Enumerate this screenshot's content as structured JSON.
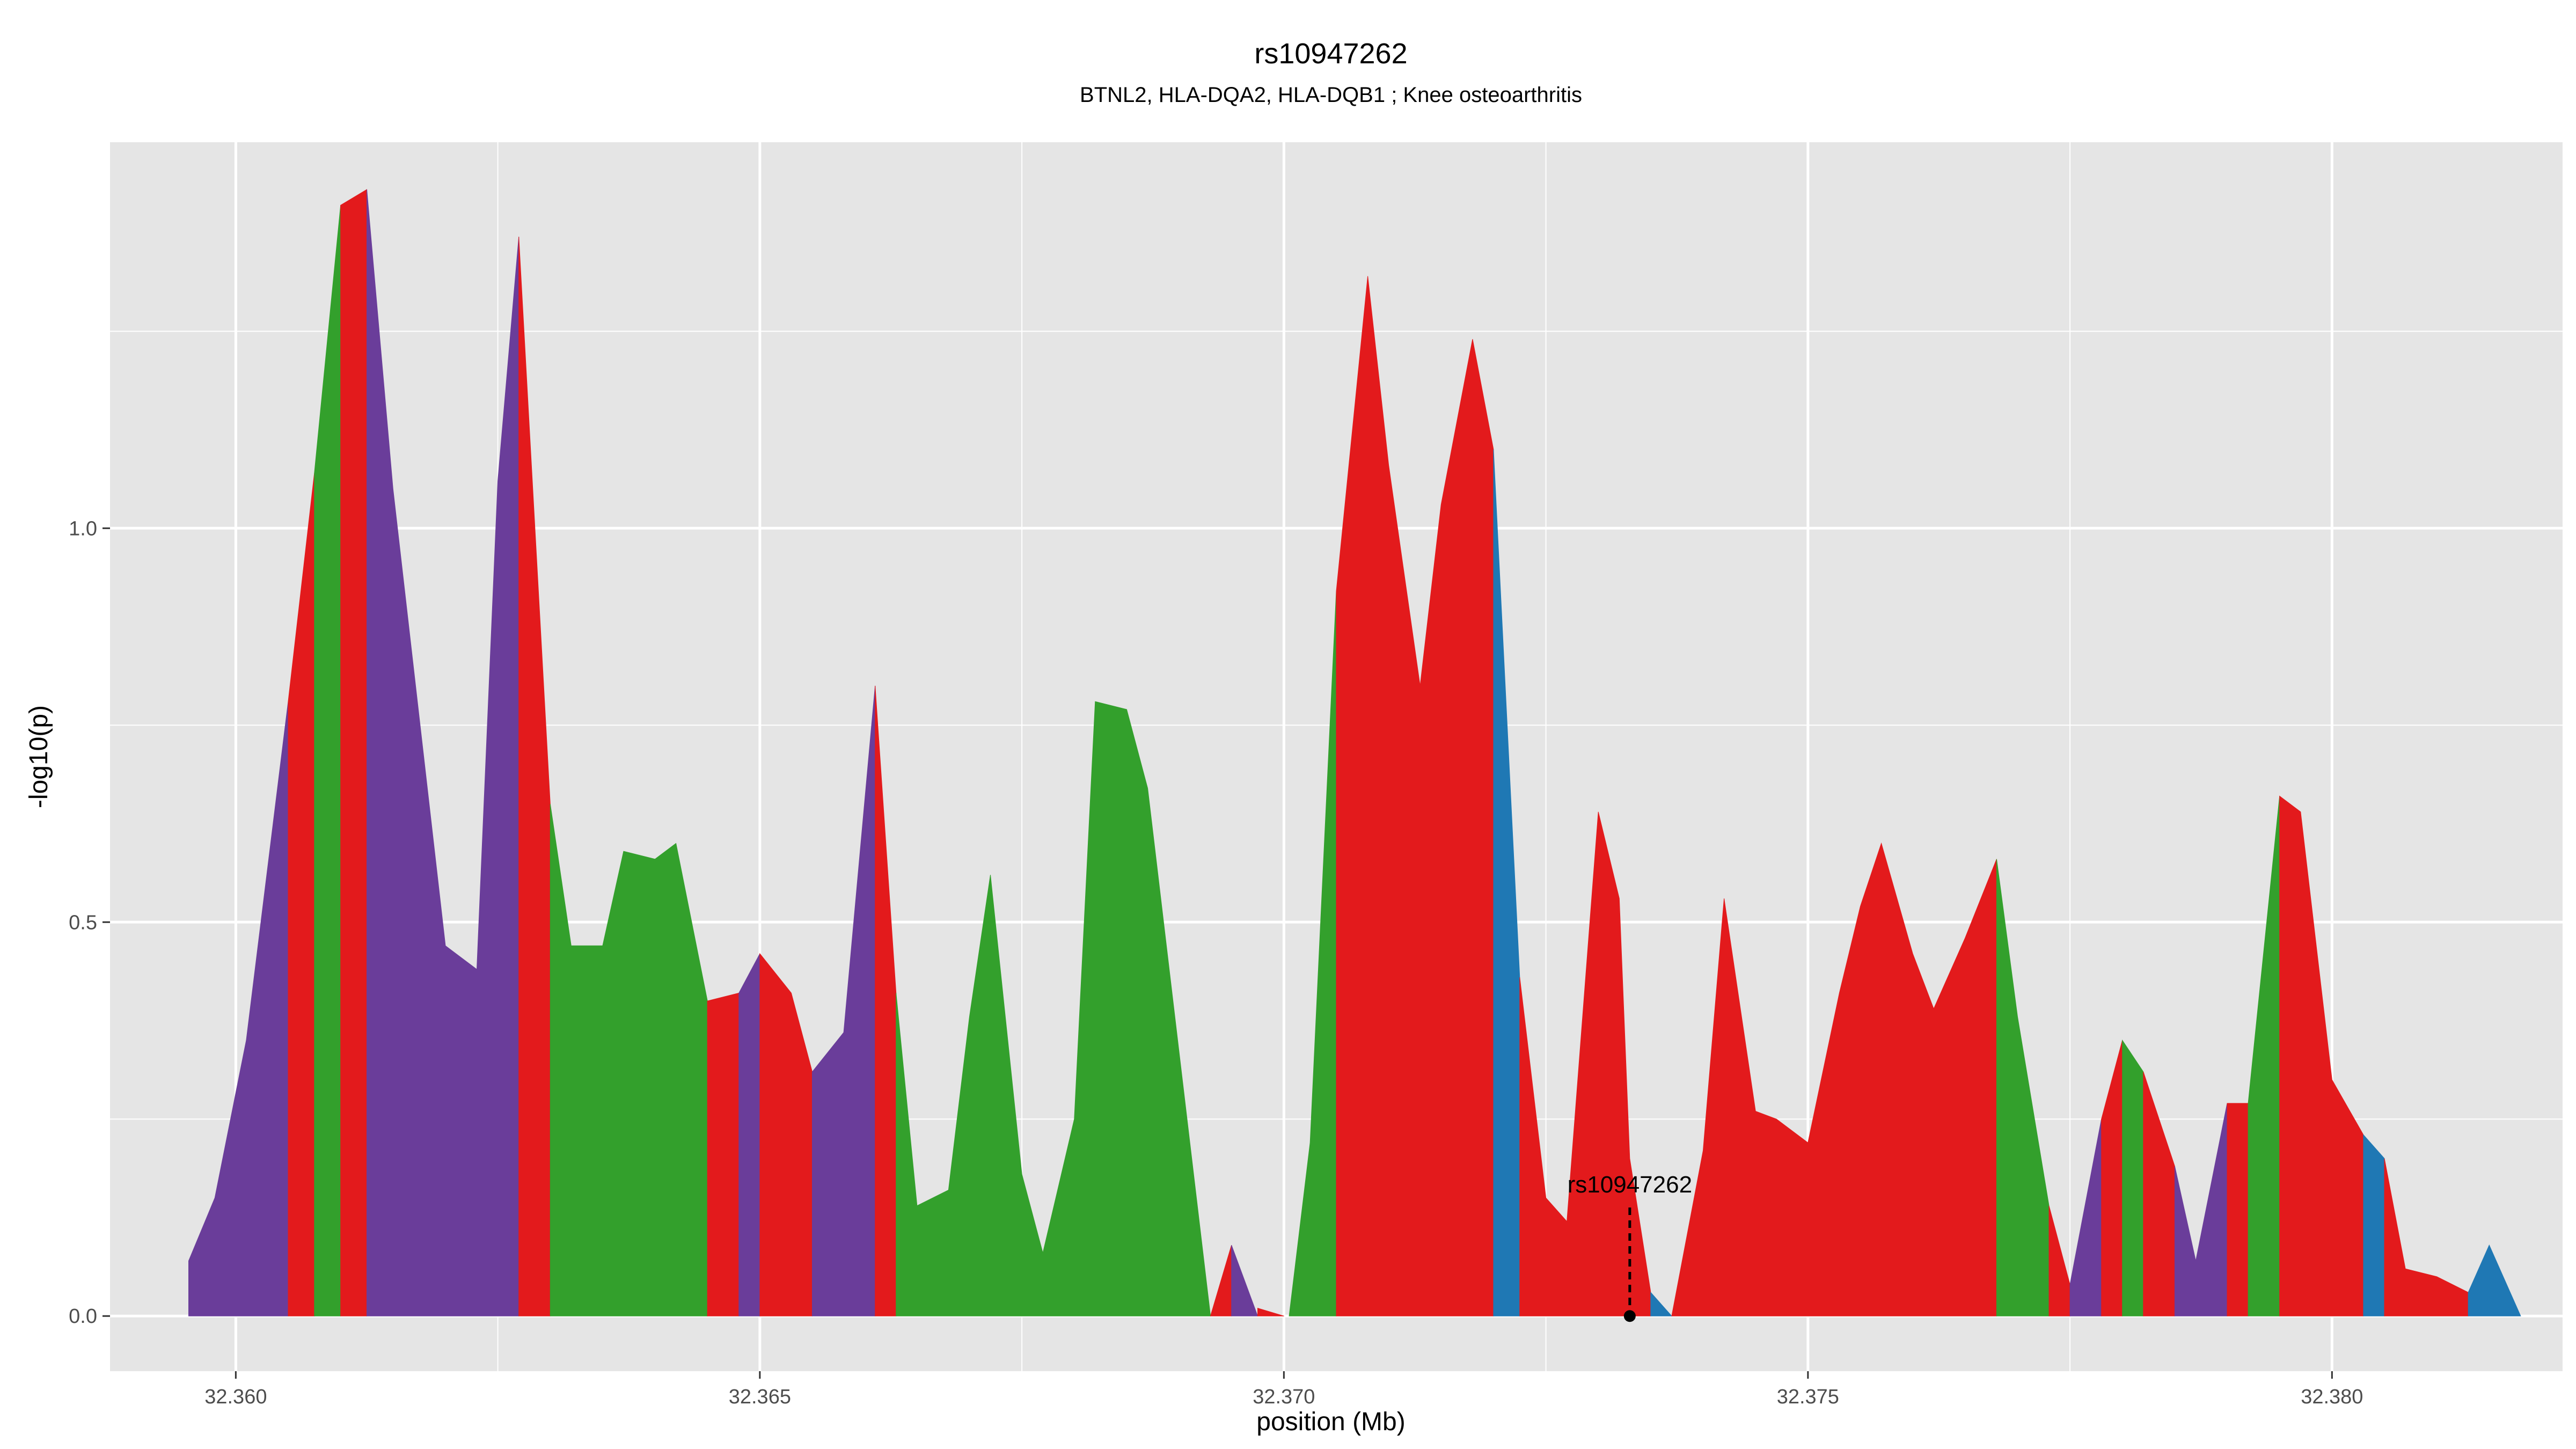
{
  "chart_data": {
    "type": "area",
    "title": "rs10947262",
    "subtitle": "BTNL2, HLA-DQA2, HLA-DQB1 ; Knee osteoarthritis",
    "xlabel": "position (Mb)",
    "ylabel": "-log10(p)",
    "xlim": [
      32.3588,
      32.3822
    ],
    "ylim": [
      -0.07,
      1.49
    ],
    "x_ticks": [
      "32.360",
      "32.365",
      "32.370",
      "32.375",
      "32.380"
    ],
    "x_tick_values": [
      32.36,
      32.365,
      32.37,
      32.375,
      32.38
    ],
    "y_ticks": [
      "0.0",
      "0.5",
      "1.0"
    ],
    "y_tick_values": [
      0.0,
      0.5,
      1.0
    ],
    "grid": true,
    "legend": "none",
    "colors": {
      "purple": "#6a3d9a",
      "green": "#33a02c",
      "red": "#e31a1c",
      "blue": "#1f78b4",
      "panel_bg": "#e5e5e5",
      "grid": "#ffffff"
    },
    "lead_snp": {
      "label": "rs10947262",
      "x": 32.3733,
      "y": 0.0,
      "label_y": 0.15
    },
    "series": [
      {
        "color": "purple",
        "points": [
          [
            32.35955,
            0
          ],
          [
            32.35955,
            0.07
          ],
          [
            32.3598,
            0.15
          ],
          [
            32.3601,
            0.35
          ],
          [
            32.3605,
            0.78
          ],
          [
            32.3605,
            0
          ]
        ]
      },
      {
        "color": "red",
        "points": [
          [
            32.3605,
            0
          ],
          [
            32.3605,
            0.78
          ],
          [
            32.36075,
            1.07
          ],
          [
            32.36075,
            0
          ]
        ]
      },
      {
        "color": "green",
        "points": [
          [
            32.36075,
            0
          ],
          [
            32.36075,
            1.07
          ],
          [
            32.361,
            1.41
          ],
          [
            32.361,
            0
          ]
        ]
      },
      {
        "color": "red",
        "points": [
          [
            32.361,
            0
          ],
          [
            32.361,
            1.41
          ],
          [
            32.36125,
            1.43
          ],
          [
            32.36125,
            0
          ]
        ]
      },
      {
        "color": "purple",
        "points": [
          [
            32.36125,
            0
          ],
          [
            32.36125,
            1.43
          ],
          [
            32.3615,
            1.05
          ],
          [
            32.362,
            0.47
          ],
          [
            32.3623,
            0.44
          ],
          [
            32.3625,
            1.06
          ],
          [
            32.3627,
            1.37
          ],
          [
            32.3627,
            0
          ]
        ]
      },
      {
        "color": "red",
        "points": [
          [
            32.3627,
            0
          ],
          [
            32.3627,
            1.37
          ],
          [
            32.363,
            0.65
          ],
          [
            32.363,
            0
          ]
        ]
      },
      {
        "color": "green",
        "points": [
          [
            32.363,
            0
          ],
          [
            32.363,
            0.65
          ],
          [
            32.3632,
            0.47
          ],
          [
            32.3635,
            0.47
          ],
          [
            32.3637,
            0.59
          ],
          [
            32.364,
            0.58
          ],
          [
            32.3642,
            0.6
          ],
          [
            32.3645,
            0.4
          ],
          [
            32.3645,
            0
          ]
        ]
      },
      {
        "color": "red",
        "points": [
          [
            32.3645,
            0
          ],
          [
            32.3645,
            0.4
          ],
          [
            32.3648,
            0.41
          ],
          [
            32.3648,
            0
          ]
        ]
      },
      {
        "color": "purple",
        "points": [
          [
            32.3648,
            0
          ],
          [
            32.3648,
            0.41
          ],
          [
            32.365,
            0.46
          ],
          [
            32.365,
            0
          ]
        ]
      },
      {
        "color": "red",
        "points": [
          [
            32.365,
            0
          ],
          [
            32.365,
            0.46
          ],
          [
            32.3653,
            0.41
          ],
          [
            32.3655,
            0.31
          ],
          [
            32.3655,
            0
          ]
        ]
      },
      {
        "color": "purple",
        "points": [
          [
            32.3655,
            0
          ],
          [
            32.3655,
            0.31
          ],
          [
            32.3658,
            0.36
          ],
          [
            32.3661,
            0.8
          ],
          [
            32.3661,
            0
          ]
        ]
      },
      {
        "color": "red",
        "points": [
          [
            32.3661,
            0
          ],
          [
            32.3661,
            0.8
          ],
          [
            32.3663,
            0.41
          ],
          [
            32.3663,
            0
          ]
        ]
      },
      {
        "color": "green",
        "points": [
          [
            32.3663,
            0
          ],
          [
            32.3663,
            0.41
          ],
          [
            32.3665,
            0.14
          ],
          [
            32.3668,
            0.16
          ],
          [
            32.367,
            0.38
          ],
          [
            32.3672,
            0.56
          ],
          [
            32.3675,
            0.18
          ],
          [
            32.3677,
            0.08
          ],
          [
            32.368,
            0.25
          ],
          [
            32.3682,
            0.78
          ],
          [
            32.3685,
            0.77
          ],
          [
            32.3687,
            0.67
          ],
          [
            32.3693,
            0
          ],
          [
            32.3693,
            0
          ]
        ]
      },
      {
        "color": "red",
        "points": [
          [
            32.3693,
            0
          ],
          [
            32.3695,
            0.09
          ],
          [
            32.3695,
            0
          ]
        ]
      },
      {
        "color": "purple",
        "points": [
          [
            32.3695,
            0
          ],
          [
            32.3695,
            0.09
          ],
          [
            32.36975,
            0
          ],
          [
            32.36975,
            0
          ]
        ]
      },
      {
        "color": "red",
        "points": [
          [
            32.36975,
            0
          ],
          [
            32.36975,
            0.01
          ],
          [
            32.37,
            0
          ],
          [
            32.37,
            0
          ]
        ]
      },
      {
        "color": "green",
        "points": [
          [
            32.37005,
            0
          ],
          [
            32.37025,
            0.22
          ],
          [
            32.3705,
            0.92
          ],
          [
            32.3705,
            0
          ]
        ]
      },
      {
        "color": "red",
        "points": [
          [
            32.3705,
            0
          ],
          [
            32.3705,
            0.92
          ],
          [
            32.3708,
            1.32
          ],
          [
            32.371,
            1.08
          ],
          [
            32.3713,
            0.8
          ],
          [
            32.3715,
            1.03
          ],
          [
            32.3718,
            1.24
          ],
          [
            32.372,
            1.1
          ],
          [
            32.372,
            0
          ]
        ]
      },
      {
        "color": "blue",
        "points": [
          [
            32.372,
            0
          ],
          [
            32.372,
            1.1
          ],
          [
            32.37225,
            0.43
          ],
          [
            32.37225,
            0
          ]
        ]
      },
      {
        "color": "red",
        "points": [
          [
            32.37225,
            0
          ],
          [
            32.37225,
            0.43
          ],
          [
            32.3725,
            0.15
          ],
          [
            32.3727,
            0.12
          ],
          [
            32.373,
            0.64
          ],
          [
            32.3732,
            0.53
          ],
          [
            32.3733,
            0.2
          ],
          [
            32.3735,
            0.03
          ],
          [
            32.3735,
            0
          ]
        ]
      },
      {
        "color": "blue",
        "points": [
          [
            32.3735,
            0
          ],
          [
            32.3735,
            0.03
          ],
          [
            32.3737,
            0
          ],
          [
            32.3737,
            0
          ]
        ]
      },
      {
        "color": "red",
        "points": [
          [
            32.3737,
            0
          ],
          [
            32.374,
            0.21
          ],
          [
            32.3742,
            0.53
          ],
          [
            32.3745,
            0.26
          ],
          [
            32.3747,
            0.25
          ],
          [
            32.375,
            0.22
          ],
          [
            32.3753,
            0.41
          ],
          [
            32.3755,
            0.52
          ],
          [
            32.3757,
            0.6
          ],
          [
            32.376,
            0.46
          ],
          [
            32.3762,
            0.39
          ],
          [
            32.3765,
            0.48
          ],
          [
            32.3768,
            0.58
          ],
          [
            32.3768,
            0
          ]
        ]
      },
      {
        "color": "green",
        "points": [
          [
            32.3768,
            0
          ],
          [
            32.3768,
            0.58
          ],
          [
            32.377,
            0.38
          ],
          [
            32.3773,
            0.14
          ],
          [
            32.3773,
            0
          ]
        ]
      },
      {
        "color": "red",
        "points": [
          [
            32.3773,
            0
          ],
          [
            32.3773,
            0.14
          ],
          [
            32.3775,
            0.04
          ],
          [
            32.3775,
            0
          ]
        ]
      },
      {
        "color": "purple",
        "points": [
          [
            32.3775,
            0
          ],
          [
            32.3775,
            0.04
          ],
          [
            32.3778,
            0.25
          ],
          [
            32.3778,
            0
          ]
        ]
      },
      {
        "color": "red",
        "points": [
          [
            32.3778,
            0
          ],
          [
            32.3778,
            0.25
          ],
          [
            32.378,
            0.35
          ],
          [
            32.378,
            0
          ]
        ]
      },
      {
        "color": "green",
        "points": [
          [
            32.378,
            0
          ],
          [
            32.378,
            0.35
          ],
          [
            32.3782,
            0.31
          ],
          [
            32.3782,
            0
          ]
        ]
      },
      {
        "color": "red",
        "points": [
          [
            32.3782,
            0
          ],
          [
            32.3782,
            0.31
          ],
          [
            32.3785,
            0.19
          ],
          [
            32.3785,
            0
          ]
        ]
      },
      {
        "color": "purple",
        "points": [
          [
            32.3785,
            0
          ],
          [
            32.3785,
            0.19
          ],
          [
            32.3787,
            0.07
          ],
          [
            32.379,
            0.27
          ],
          [
            32.379,
            0
          ]
        ]
      },
      {
        "color": "red",
        "points": [
          [
            32.379,
            0
          ],
          [
            32.379,
            0.27
          ],
          [
            32.3792,
            0.27
          ],
          [
            32.3792,
            0
          ]
        ]
      },
      {
        "color": "green",
        "points": [
          [
            32.3792,
            0
          ],
          [
            32.3792,
            0.27
          ],
          [
            32.3795,
            0.66
          ],
          [
            32.3795,
            0
          ]
        ]
      },
      {
        "color": "red",
        "points": [
          [
            32.3795,
            0
          ],
          [
            32.3795,
            0.66
          ],
          [
            32.3797,
            0.64
          ],
          [
            32.38,
            0.3
          ],
          [
            32.3803,
            0.23
          ],
          [
            32.3803,
            0
          ]
        ]
      },
      {
        "color": "blue",
        "points": [
          [
            32.3803,
            0
          ],
          [
            32.3803,
            0.23
          ],
          [
            32.3805,
            0.2
          ],
          [
            32.3805,
            0
          ]
        ]
      },
      {
        "color": "red",
        "points": [
          [
            32.3805,
            0
          ],
          [
            32.3805,
            0.2
          ],
          [
            32.3807,
            0.06
          ],
          [
            32.381,
            0.05
          ],
          [
            32.3813,
            0.03
          ],
          [
            32.3813,
            0
          ]
        ]
      },
      {
        "color": "blue",
        "points": [
          [
            32.3813,
            0
          ],
          [
            32.3813,
            0.03
          ],
          [
            32.3815,
            0.09
          ],
          [
            32.3818,
            0
          ],
          [
            32.3818,
            0
          ]
        ]
      }
    ]
  }
}
